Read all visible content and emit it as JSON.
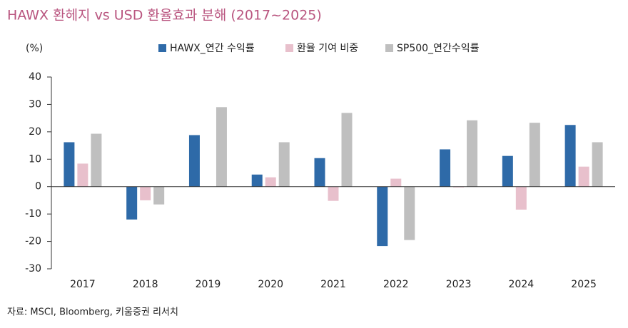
{
  "chart_data": {
    "type": "bar",
    "title": "HAWX 환헤지 vs USD 환율효과 분해 (2017~2025)",
    "y_label": "(%)",
    "source": "자료: MSCI, Bloomberg, 키움증권 리서치",
    "categories": [
      "2017",
      "2018",
      "2019",
      "2020",
      "2021",
      "2022",
      "2023",
      "2024",
      "2025"
    ],
    "series": [
      {
        "name": "HAWX_연간 수익률",
        "color": "#2e6aa8",
        "values": [
          16.2,
          -12,
          18.8,
          4.4,
          10.4,
          -21.7,
          13.6,
          11.2,
          22.5
        ]
      },
      {
        "name": "환율 기여 비중",
        "color": "#e8c0cc",
        "values": [
          8.4,
          -5,
          0,
          3.4,
          -5.2,
          2.9,
          -0.3,
          -8.4,
          7.3
        ]
      },
      {
        "name": "SP500_연간수익률",
        "color": "#bfbfbf",
        "values": [
          19.3,
          -6.5,
          29,
          16.2,
          26.9,
          -19.5,
          24.2,
          23.3,
          16.2
        ]
      }
    ],
    "ylim": [
      -30,
      40
    ],
    "yticks": [
      -30,
      -20,
      -10,
      0,
      10,
      20,
      30,
      40
    ],
    "grid": false
  }
}
